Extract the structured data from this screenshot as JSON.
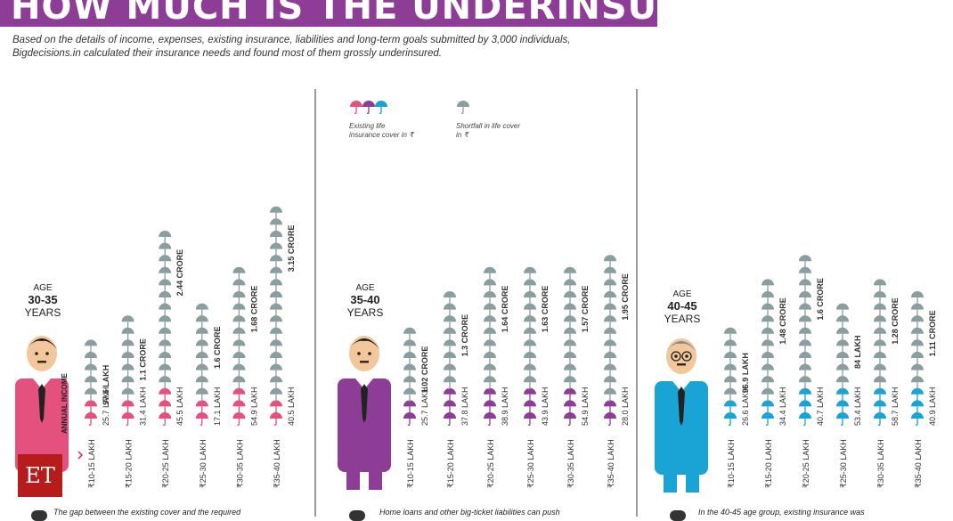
{
  "header": {
    "title": "HOW MUCH IS THE UNDERINSURANCE",
    "intro": "Based on the details of income, expenses, existing insurance, liabilities and long-term goals submitted by 3,000 individuals, Bigdecisions.in calculated their insurance needs and found most of them grossly underinsured."
  },
  "legend": {
    "existing_label": "Existing life insurance cover in ₹",
    "shortfall_label": "Shortfall in life cover in ₹"
  },
  "logo": {
    "text": "ET"
  },
  "annual_income_label": "ANNUAL INCOME",
  "footers": [
    "The gap between the existing cover and the required",
    "Home loans and other big-ticket liabilities can push",
    "In the 40-45 age group, existing insurance was"
  ],
  "colors": {
    "shortfall": "#8a9ea0",
    "group1": "#e5517f",
    "group2": "#8e3d97",
    "group3": "#1aa3d5",
    "title_bg": "#8e3d97"
  },
  "chart_data": [
    {
      "type": "bar",
      "age_label": "AGE",
      "age_range": "30-35",
      "years_label": "YEARS",
      "categories": [
        "₹10-15 LAKH",
        "₹15-20 LAKH",
        "₹20-25 LAKH",
        "₹25-30 LAKH",
        "₹30-35 LAKH",
        "₹35-40 LAKH"
      ],
      "series": [
        {
          "name": "Existing life insurance cover in ₹",
          "labels": [
            "25.7 LAKH",
            "31.4 LAKH",
            "45.5 LAKH",
            "17.1 LAKH",
            "54.9 LAKH",
            "40.5 LAKH"
          ],
          "icons": [
            2,
            2,
            3,
            2,
            3,
            2
          ]
        },
        {
          "name": "Shortfall in life cover in ₹",
          "labels": [
            "97.6 LAKH",
            "1.1 CRORE",
            "2.44 CRORE",
            "1.6 CRORE",
            "1.68 CRORE",
            "3.15 CRORE"
          ],
          "icons": [
            5,
            7,
            13,
            8,
            10,
            16
          ]
        }
      ]
    },
    {
      "type": "bar",
      "age_label": "AGE",
      "age_range": "35-40",
      "years_label": "YEARS",
      "categories": [
        "₹10-15 LAKH",
        "₹15-20 LAKH",
        "₹20-25 LAKH",
        "₹25-30 LAKH",
        "₹30-35 LAKH",
        "₹35-40 LAKH"
      ],
      "series": [
        {
          "name": "Existing life insurance cover in ₹",
          "labels": [
            "25.7 LAKH",
            "37.8 LAKH",
            "38.9 LAKH",
            "43.9 LAKH",
            "54.9 LAKH",
            "28.0 LAKH"
          ],
          "icons": [
            2,
            3,
            3,
            3,
            3,
            2
          ]
        },
        {
          "name": "Shortfall in life cover in ₹",
          "labels": [
            "1.02 CRORE",
            "1.3 CRORE",
            "1.64 CRORE",
            "1.63 CRORE",
            "1.57 CRORE",
            "1.95 CRORE"
          ],
          "icons": [
            6,
            8,
            10,
            10,
            10,
            12
          ]
        }
      ]
    },
    {
      "type": "bar",
      "age_label": "AGE",
      "age_range": "40-45",
      "years_label": "YEARS",
      "categories": [
        "₹10-15 LAKH",
        "₹15-20 LAKH",
        "₹20-25 LAKH",
        "₹25-30 LAKH",
        "₹30-35 LAKH",
        "₹35-40 LAKH"
      ],
      "series": [
        {
          "name": "Existing life insurance cover in ₹",
          "labels": [
            "26.6 LAKH",
            "34.4 LAKH",
            "40.7 LAKH",
            "53.4 LAKH",
            "58.7 LAKH",
            "40.9 LAKH"
          ],
          "icons": [
            2,
            2,
            3,
            3,
            3,
            3
          ]
        },
        {
          "name": "Shortfall in life cover in ₹",
          "labels": [
            "96.9 LAKH",
            "1.48 CRORE",
            "1.6 CRORE",
            "84 LAKH",
            "1.28 CRORE",
            "1.11 CRORE"
          ],
          "icons": [
            6,
            10,
            11,
            7,
            9,
            8
          ]
        }
      ]
    }
  ]
}
